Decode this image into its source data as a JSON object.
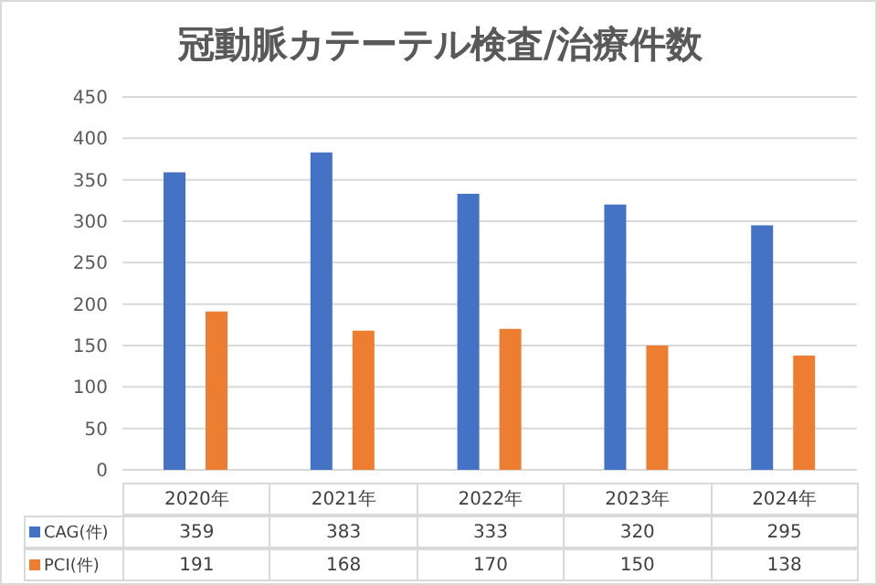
{
  "chart_data": {
    "type": "bar",
    "title": "冠動脈カテーテル検査/治療件数",
    "categories": [
      "2020年",
      "2021年",
      "2022年",
      "2023年",
      "2024年"
    ],
    "series": [
      {
        "name": "CAG(件)",
        "color": "#4472c4",
        "values": [
          359,
          383,
          333,
          320,
          295
        ]
      },
      {
        "name": "PCI(件)",
        "color": "#ed7d31",
        "values": [
          191,
          168,
          170,
          150,
          138
        ]
      }
    ],
    "ylim": [
      0,
      450
    ],
    "yticks": [
      0,
      50,
      100,
      150,
      200,
      250,
      300,
      350,
      400,
      450
    ],
    "grid": "y",
    "legend": "bottom",
    "data_labels": true
  }
}
